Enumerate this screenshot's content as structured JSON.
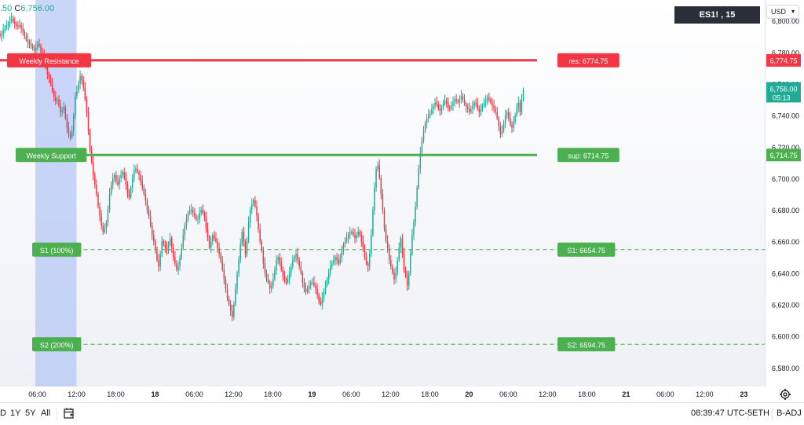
{
  "header": {
    "ohlc_prefix": ".50",
    "close_key": "C",
    "close_value": "6,756.00",
    "symbol_interval": "ES1! , 15",
    "currency": "USD"
  },
  "chart_data": {
    "type": "candlestick",
    "symbol": "ES1!",
    "interval": "15",
    "y_axis": {
      "ylim": [
        6568,
        6813
      ],
      "ticks": [
        "6,800.00",
        "6,780.00",
        "6,760.00",
        "6,740.00",
        "6,720.00",
        "6,700.00",
        "6,680.00",
        "6,660.00",
        "6,640.00",
        "6,620.00",
        "6,600.00",
        "6,580.00"
      ],
      "tick_values": [
        6800,
        6780,
        6760,
        6740,
        6720,
        6700,
        6680,
        6660,
        6640,
        6620,
        6600,
        6580
      ]
    },
    "x_axis": {
      "ticks": [
        "06:00",
        "12:00",
        "18:00",
        "18",
        "06:00",
        "12:00",
        "18:00",
        "19",
        "06:00",
        "12:00",
        "18:00",
        "20",
        "06:00",
        "12:00",
        "18:00",
        "21",
        "06:00",
        "12:00",
        "23"
      ],
      "tick_hours": [
        6,
        12,
        18,
        24,
        30,
        36,
        42,
        48,
        54,
        60,
        66,
        72,
        78,
        84,
        90,
        96,
        102,
        108,
        114
      ],
      "range_hours": [
        0.3,
        117.2
      ]
    },
    "highlight_session_hours": [
      5.7,
      12.0
    ],
    "levels": [
      {
        "label": "Weekly Resistance",
        "tag": "res: 6774.75",
        "price": 6774.75,
        "scale_label": "6,774.75",
        "color": "#f23645",
        "style": "solid",
        "from_hour": 0.3
      },
      {
        "label": "Weekly Support",
        "tag": "sup: 6714.75",
        "price": 6714.75,
        "scale_label": "6,714.75",
        "color": "#4caf50",
        "style": "solid",
        "from_hour": 12
      },
      {
        "label": "S1 (100%)",
        "tag": "S1: 6654.75",
        "price": 6654.75,
        "scale_label": "",
        "color": "#4caf50",
        "style": "dashed",
        "from_hour": 12
      },
      {
        "label": "S2 (200%)",
        "tag": "S2: 6594.75",
        "price": 6594.75,
        "scale_label": "",
        "color": "#4caf50",
        "style": "dashed",
        "from_hour": 12
      }
    ],
    "current_price": {
      "value": "6,756.00",
      "countdown": "05:13",
      "color": "#22ab94"
    },
    "candles": {
      "start_hour": 0.3,
      "step_hours": 0.25,
      "closes": [
        6790,
        6791,
        6794,
        6795,
        6797,
        6798,
        6800,
        6801,
        6799,
        6798,
        6797,
        6796,
        6797,
        6795,
        6793,
        6790,
        6788,
        6786,
        6785,
        6784,
        6782,
        6781,
        6783,
        6785,
        6784,
        6780,
        6778,
        6775,
        6770,
        6766,
        6763,
        6760,
        6755,
        6752,
        6749,
        6750,
        6746,
        6742,
        6743,
        6745,
        6738,
        6732,
        6728,
        6726,
        6730,
        6740,
        6752,
        6755,
        6760,
        6765,
        6762,
        6757,
        6750,
        6742,
        6730,
        6718,
        6710,
        6702,
        6696,
        6690,
        6682,
        6676,
        6670,
        6666,
        6668,
        6672,
        6680,
        6690,
        6696,
        6700,
        6702,
        6698,
        6696,
        6700,
        6702,
        6704,
        6700,
        6696,
        6690,
        6688,
        6694,
        6700,
        6705,
        6706,
        6704,
        6702,
        6698,
        6694,
        6690,
        6686,
        6680,
        6676,
        6670,
        6664,
        6660,
        6654,
        6648,
        6644,
        6652,
        6660,
        6658,
        6656,
        6654,
        6658,
        6662,
        6656,
        6650,
        6646,
        6642,
        6644,
        6650,
        6656,
        6664,
        6670,
        6674,
        6678,
        6680,
        6680,
        6678,
        6676,
        6674,
        6674,
        6678,
        6680,
        6678,
        6676,
        6668,
        6662,
        6656,
        6660,
        6664,
        6662,
        6660,
        6656,
        6652,
        6648,
        6642,
        6636,
        6630,
        6624,
        6620,
        6616,
        6612,
        6620,
        6630,
        6640,
        6648,
        6658,
        6666,
        6660,
        6652,
        6660,
        6672,
        6680,
        6684,
        6686,
        6682,
        6676,
        6668,
        6660,
        6654,
        6646,
        6640,
        6636,
        6634,
        6630,
        6632,
        6636,
        6642,
        6648,
        6650,
        6646,
        6642,
        6638,
        6636,
        6634,
        6636,
        6640,
        6644,
        6648,
        6650,
        6652,
        6648,
        6644,
        6640,
        6634,
        6630,
        6628,
        6630,
        6632,
        6634,
        6634,
        6632,
        6630,
        6626,
        6622,
        6620,
        6624,
        6628,
        6632,
        6636,
        6640,
        6644,
        6646,
        6648,
        6650,
        6648,
        6646,
        6650,
        6654,
        6658,
        6660,
        6662,
        6664,
        6666,
        6666,
        6664,
        6662,
        6664,
        6666,
        6664,
        6660,
        6656,
        6650,
        6646,
        6644,
        6652,
        6664,
        6680,
        6694,
        6706,
        6708,
        6700,
        6690,
        6680,
        6668,
        6660,
        6656,
        6648,
        6644,
        6640,
        6636,
        6640,
        6648,
        6656,
        6662,
        6652,
        6642,
        6638,
        6632,
        6640,
        6652,
        6664,
        6672,
        6682,
        6694,
        6706,
        6716,
        6724,
        6730,
        6735,
        6738,
        6740,
        6741,
        6744,
        6746,
        6748,
        6747,
        6744,
        6743,
        6745,
        6747,
        6749,
        6748,
        6745,
        6744,
        6746,
        6748,
        6750,
        6749,
        6748,
        6750,
        6752,
        6750,
        6747,
        6745,
        6744,
        6742,
        6744,
        6746,
        6748,
        6747,
        6744,
        6742,
        6744,
        6746,
        6748,
        6749,
        6751,
        6750,
        6748,
        6746,
        6744,
        6742,
        6738,
        6733,
        6728,
        6730,
        6735,
        6740,
        6742,
        6738,
        6734,
        6732,
        6736,
        6740,
        6745,
        6748,
        6742,
        6750,
        6756
      ]
    }
  },
  "bottom_toolbar": {
    "range_cut": "D",
    "r1y": "1Y",
    "r5y": "5Y",
    "rall": "All",
    "time": "08:39:47 UTC-5",
    "session": "ETH",
    "adj": "B-ADJ"
  },
  "colors": {
    "up": "#22ab94",
    "down": "#f23645",
    "resistance": "#f23645",
    "support": "#4caf50",
    "session_highlight": "#b2c4f5"
  }
}
